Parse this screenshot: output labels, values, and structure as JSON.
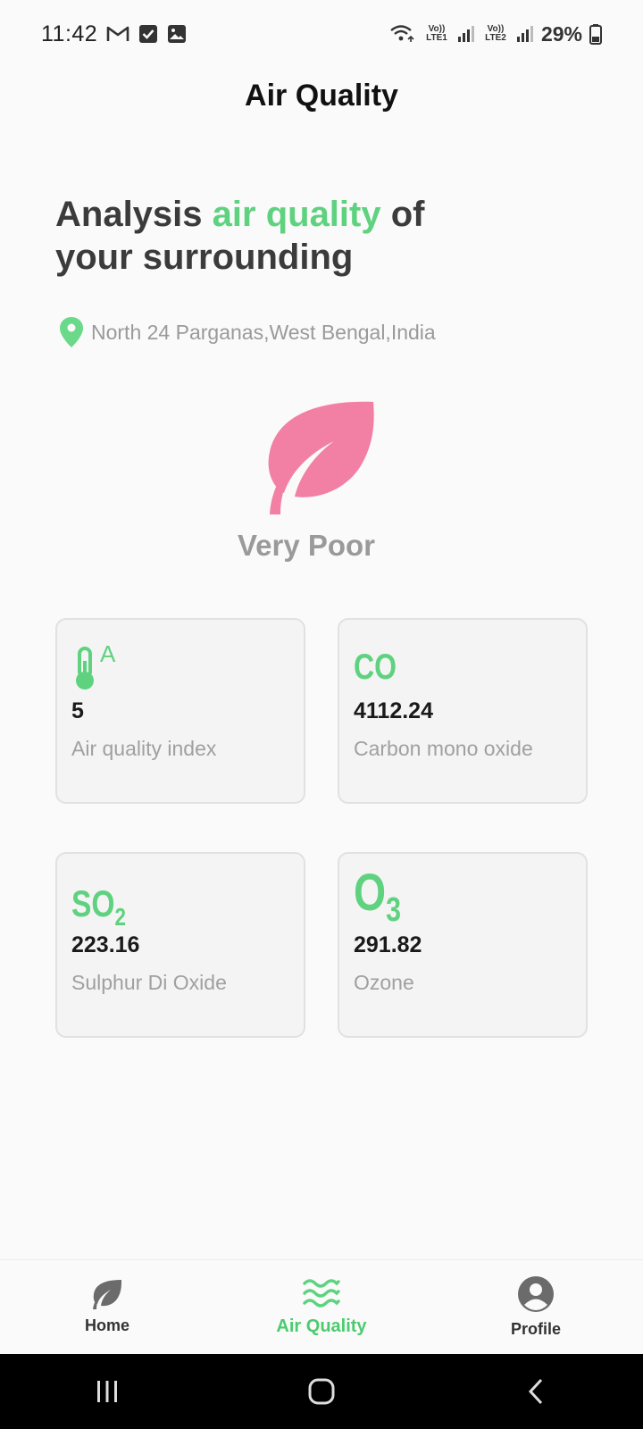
{
  "status_bar": {
    "time": "11:42",
    "sim1": "Vo)) LTE1",
    "sim2": "Vo)) LTE2",
    "battery": "29%"
  },
  "header": {
    "title": "Air Quality"
  },
  "headline": {
    "part1": "Analysis ",
    "accent": "air quality",
    "part2": " of your surrounding"
  },
  "location": {
    "text": "North 24 Parganas,West Bengal,India",
    "icon": "location-pin-icon"
  },
  "level": {
    "label": "Very Poor",
    "icon": "leaf-icon",
    "color": "#f27fa4"
  },
  "cards": [
    {
      "icon": "thermometer-icon",
      "icon_text": "A",
      "value": "5",
      "label": "Air quality index"
    },
    {
      "icon": "co-icon",
      "icon_text": "CO",
      "value": "4112.24",
      "label": "Carbon mono oxide"
    },
    {
      "icon": "so2-icon",
      "icon_text": "SO",
      "icon_sub": "2",
      "value": "223.16",
      "label": "Sulphur Di Oxide"
    },
    {
      "icon": "o3-icon",
      "icon_text": "O",
      "icon_sub": "3",
      "value": "291.82",
      "label": "Ozone"
    }
  ],
  "nav": {
    "items": [
      {
        "label": "Home",
        "icon": "leaf-icon",
        "active": false
      },
      {
        "label": "Air Quality",
        "icon": "waves-icon",
        "active": true
      },
      {
        "label": "Profile",
        "icon": "person-icon",
        "active": false
      }
    ]
  },
  "colors": {
    "accent": "#5fd27f",
    "leaf": "#f27fa4",
    "muted": "#9a9a9a"
  }
}
